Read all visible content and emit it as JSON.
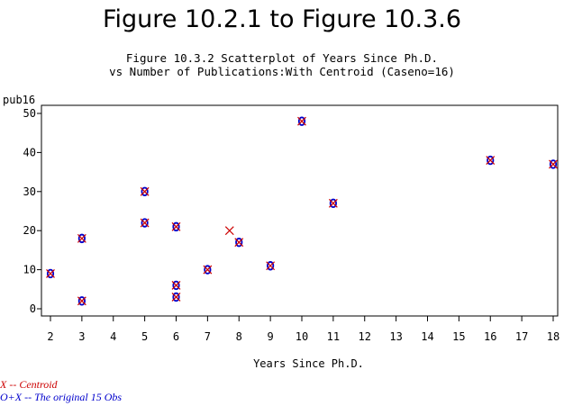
{
  "page_title": "Figure 10.2.1 to Figure 10.3.6",
  "subtitle_line1": "Figure 10.3.2 Scatterplot of Years Since Ph.D.",
  "subtitle_line2": "vs Number of Publications:With Centroid (Caseno=16)",
  "footnotes": {
    "centroid": "X -- Centroid",
    "original": "O+X -- The original 15 Obs"
  },
  "colors": {
    "centroid": "#cc0000",
    "original": "#0000cc",
    "axis": "#000000"
  },
  "chart_data": {
    "type": "scatter",
    "title": "Figure 10.3.2 Scatterplot of Years Since Ph.D. vs Number of Publications:With Centroid (Caseno=16)",
    "xlabel": "Years Since Ph.D.",
    "ylabel": "pub16",
    "xlim": [
      2,
      18
    ],
    "ylim": [
      0,
      50
    ],
    "xticks": [
      2,
      3,
      4,
      5,
      6,
      7,
      8,
      9,
      10,
      11,
      12,
      13,
      14,
      15,
      16,
      17,
      18
    ],
    "yticks": [
      0,
      10,
      20,
      30,
      40,
      50
    ],
    "grid": false,
    "series": [
      {
        "marker": "O",
        "color": "#0000cc",
        "x": [
          2,
          3,
          3,
          5,
          5,
          6,
          6,
          6,
          7,
          8,
          9,
          10,
          11,
          16,
          18
        ],
        "y": [
          9,
          2,
          18,
          30,
          22,
          21,
          6,
          3,
          10,
          17,
          11,
          48,
          27,
          38,
          37
        ]
      },
      {
        "marker": "X",
        "color": "#cc0000",
        "x": [
          2,
          3,
          3,
          5,
          5,
          6,
          6,
          6,
          7,
          8,
          9,
          10,
          11,
          16,
          18,
          7.7
        ],
        "y": [
          9,
          2,
          18,
          30,
          22,
          21,
          6,
          3,
          10,
          17,
          11,
          48,
          27,
          38,
          37,
          20
        ]
      }
    ]
  }
}
